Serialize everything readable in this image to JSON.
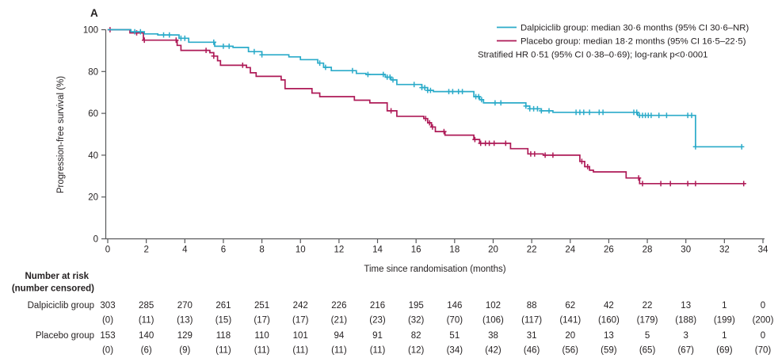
{
  "panel_label": "A",
  "colors": {
    "dalpiciclib": "#2BABC9",
    "placebo": "#AE1A57",
    "axis": "#58595B",
    "text": "#231F20"
  },
  "legend": {
    "dalpiciclib_label": "Dalpiciclib group: median 30·6 months (95% CI 30·6–NR)",
    "placebo_label": "Placebo group: median 18·2 months (95% CI 16·5–22·5)",
    "stratified_line": "Stratified HR 0·51 (95% CI 0·38–0·69); log-rank p<0·0001"
  },
  "chart_data": {
    "type": "line",
    "subtype": "kaplan-meier-step",
    "title": "",
    "xlabel": "Time since randomisation (months)",
    "ylabel": "Progression-free survival (%)",
    "xlim": [
      0,
      34
    ],
    "ylim": [
      0,
      100
    ],
    "x_ticks": [
      0,
      2,
      4,
      6,
      8,
      10,
      12,
      14,
      16,
      18,
      20,
      22,
      24,
      26,
      28,
      30,
      32,
      34
    ],
    "y_ticks": [
      0,
      20,
      40,
      60,
      80,
      100
    ],
    "grid": false,
    "legend_position": "top-right",
    "series": [
      {
        "name": "Dalpiciclib group",
        "color": "#2BABC9",
        "steps": [
          [
            0,
            100
          ],
          [
            1.2,
            99
          ],
          [
            1.9,
            98
          ],
          [
            2.6,
            97.5
          ],
          [
            3.7,
            95.9
          ],
          [
            4.2,
            94
          ],
          [
            5.55,
            92.1
          ],
          [
            6.5,
            91.5
          ],
          [
            7.3,
            89.5
          ],
          [
            8.0,
            88
          ],
          [
            9.4,
            87
          ],
          [
            10.0,
            85.7
          ],
          [
            10.9,
            84
          ],
          [
            11.2,
            82
          ],
          [
            11.6,
            80.4
          ],
          [
            12.9,
            79.1
          ],
          [
            13.4,
            78.6
          ],
          [
            14.4,
            77.3
          ],
          [
            14.7,
            76
          ],
          [
            15.0,
            73.8
          ],
          [
            16.3,
            72.3
          ],
          [
            16.6,
            71
          ],
          [
            16.9,
            70.4
          ],
          [
            19.0,
            68
          ],
          [
            19.3,
            66.5
          ],
          [
            19.5,
            65
          ],
          [
            21.7,
            63.5
          ],
          [
            21.9,
            62.2
          ],
          [
            22.5,
            61.2
          ],
          [
            23.1,
            60.5
          ],
          [
            27.5,
            59
          ],
          [
            30.5,
            44
          ]
        ],
        "end_month": 32.9,
        "censor_months": [
          1.4,
          1.7,
          2.9,
          3.2,
          3.8,
          4.0,
          5.5,
          6.0,
          6.3,
          7.6,
          8.0,
          11.0,
          11.3,
          12.7,
          13.5,
          14.3,
          14.5,
          14.65,
          14.8,
          15.9,
          16.3,
          16.45,
          16.6,
          16.75,
          17.7,
          17.9,
          18.2,
          18.4,
          19.1,
          19.25,
          19.4,
          20.1,
          20.4,
          21.7,
          21.9,
          22.1,
          22.3,
          22.5,
          22.9,
          24.3,
          24.5,
          24.7,
          25.0,
          25.5,
          25.7,
          27.3,
          27.45,
          27.6,
          27.75,
          27.9,
          28.05,
          28.2,
          28.6,
          29.0,
          30.1,
          30.3,
          30.5,
          32.9
        ]
      },
      {
        "name": "Placebo group",
        "color": "#AE1A57",
        "steps": [
          [
            0,
            100
          ],
          [
            1.15,
            98.5
          ],
          [
            1.85,
            95
          ],
          [
            3.6,
            92.5
          ],
          [
            3.8,
            90.1
          ],
          [
            5.3,
            89
          ],
          [
            5.5,
            87.4
          ],
          [
            5.7,
            85.2
          ],
          [
            5.85,
            83
          ],
          [
            7.2,
            81.9
          ],
          [
            7.4,
            79.4
          ],
          [
            7.7,
            77.7
          ],
          [
            9.0,
            76
          ],
          [
            9.2,
            71.8
          ],
          [
            10.6,
            69.7
          ],
          [
            11.0,
            68
          ],
          [
            12.8,
            66.3
          ],
          [
            13.6,
            65
          ],
          [
            14.5,
            61.2
          ],
          [
            15.0,
            58.6
          ],
          [
            16.4,
            57.5
          ],
          [
            16.6,
            55.5
          ],
          [
            16.8,
            53.5
          ],
          [
            17.0,
            51.3
          ],
          [
            17.5,
            49.6
          ],
          [
            19.0,
            47.5
          ],
          [
            19.3,
            45.7
          ],
          [
            20.9,
            43.1
          ],
          [
            21.8,
            40.6
          ],
          [
            22.6,
            40
          ],
          [
            24.5,
            37
          ],
          [
            24.75,
            34.5
          ],
          [
            25.0,
            32.8
          ],
          [
            25.2,
            32
          ],
          [
            26.9,
            29.1
          ],
          [
            27.6,
            26.4
          ]
        ],
        "end_month": 33.1,
        "censor_months": [
          0.12,
          1.5,
          1.9,
          3.55,
          5.1,
          5.5,
          7.0,
          14.7,
          16.5,
          16.7,
          16.85,
          17.45,
          19.05,
          19.35,
          19.6,
          19.8,
          20.05,
          20.65,
          21.95,
          22.15,
          22.7,
          23.1,
          24.6,
          24.9,
          27.55,
          27.75,
          28.7,
          29.2,
          30.1,
          30.5,
          33.0
        ]
      }
    ]
  },
  "risk_table": {
    "header_line1": "Number at risk",
    "header_line2": "(number censored)",
    "time_points": [
      0,
      2,
      4,
      6,
      8,
      10,
      12,
      14,
      16,
      18,
      20,
      22,
      24,
      26,
      28,
      30,
      32,
      34
    ],
    "rows": [
      {
        "label": "Dalpiciclib group",
        "at_risk": [
          "303",
          "285",
          "270",
          "261",
          "251",
          "242",
          "226",
          "216",
          "195",
          "146",
          "102",
          "88",
          "62",
          "42",
          "22",
          "13",
          "1",
          "0"
        ],
        "censored": [
          "(0)",
          "(11)",
          "(13)",
          "(15)",
          "(17)",
          "(17)",
          "(21)",
          "(23)",
          "(32)",
          "(70)",
          "(106)",
          "(117)",
          "(141)",
          "(160)",
          "(179)",
          "(188)",
          "(199)",
          "(200)"
        ]
      },
      {
        "label": "Placebo group",
        "at_risk": [
          "153",
          "140",
          "129",
          "118",
          "110",
          "101",
          "94",
          "91",
          "82",
          "51",
          "38",
          "31",
          "20",
          "13",
          "5",
          "3",
          "1",
          "0"
        ],
        "censored": [
          "(0)",
          "(6)",
          "(9)",
          "(11)",
          "(11)",
          "(11)",
          "(11)",
          "(11)",
          "(12)",
          "(34)",
          "(42)",
          "(46)",
          "(56)",
          "(59)",
          "(65)",
          "(67)",
          "(69)",
          "(70)"
        ]
      }
    ]
  }
}
